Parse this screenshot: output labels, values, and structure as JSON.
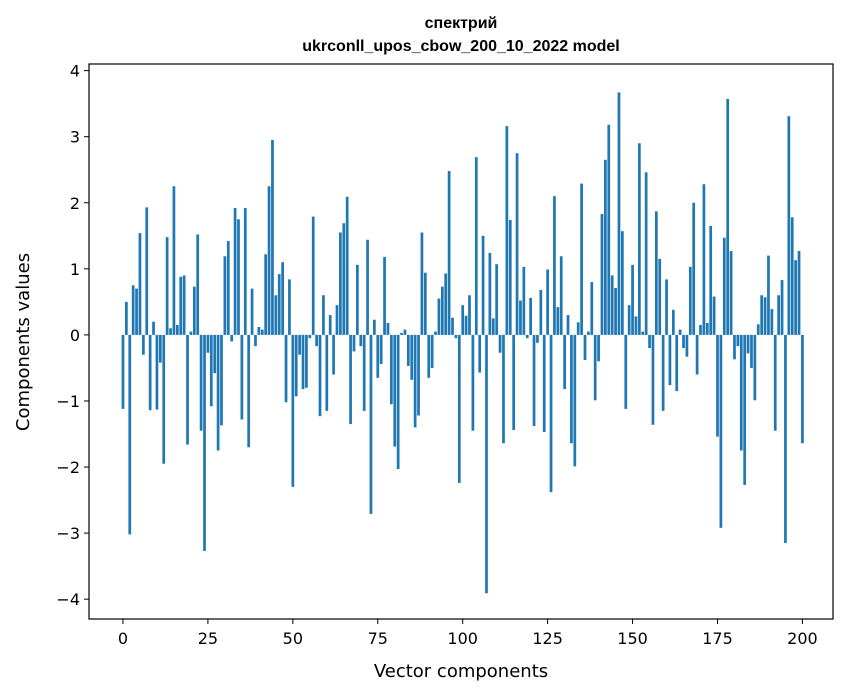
{
  "chart_data": {
    "type": "bar",
    "title_line1": "спектрий",
    "title_line2": "ukrconll_upos_cbow_200_10_2022 model",
    "xlabel": "Vector components",
    "ylabel": "Components values",
    "xlim": [
      -10,
      209
    ],
    "ylim": [
      -4.3,
      4.1
    ],
    "xticks": [
      0,
      25,
      50,
      75,
      100,
      125,
      150,
      175,
      200
    ],
    "yticks": [
      4,
      3,
      2,
      1,
      0,
      -1,
      -2,
      -3,
      -4
    ],
    "bar_color": "#1f77b4",
    "grid": false,
    "values": [
      -1.12,
      0.5,
      -3.02,
      0.75,
      0.7,
      1.54,
      -0.3,
      1.93,
      -1.14,
      0.2,
      -1.13,
      -0.42,
      -1.95,
      1.48,
      0.1,
      2.25,
      0.15,
      0.88,
      0.9,
      -1.66,
      0.05,
      0.73,
      1.52,
      -1.45,
      -3.27,
      -0.27,
      -1.08,
      -0.58,
      -1.75,
      -1.37,
      1.19,
      1.42,
      -0.1,
      1.92,
      1.75,
      -1.28,
      1.92,
      -1.7,
      0.7,
      -0.17,
      0.12,
      0.08,
      1.22,
      2.25,
      2.95,
      0.6,
      0.92,
      1.1,
      -1.02,
      0.84,
      -2.3,
      -0.93,
      -0.3,
      -0.82,
      -0.8,
      -0.05,
      1.79,
      -0.17,
      -1.23,
      0.6,
      -1.15,
      0.3,
      -0.6,
      0.45,
      1.55,
      1.69,
      2.09,
      -1.35,
      -0.25,
      1.06,
      -0.17,
      -1.15,
      1.44,
      -2.71,
      0.23,
      -0.65,
      -0.44,
      1.18,
      0.18,
      -1.05,
      -1.69,
      -2.03,
      0.03,
      0.08,
      -0.47,
      -0.68,
      -1.4,
      -1.22,
      1.55,
      0.94,
      -0.65,
      -0.5,
      0.05,
      0.55,
      0.73,
      0.93,
      2.48,
      0.26,
      -0.05,
      -2.24,
      0.45,
      0.29,
      0.6,
      -1.45,
      2.69,
      -0.57,
      1.5,
      -3.91,
      1.24,
      0.25,
      1.07,
      -0.27,
      -1.64,
      3.16,
      1.74,
      -1.44,
      2.75,
      0.52,
      1.03,
      -0.05,
      0.56,
      -1.38,
      -0.12,
      0.68,
      -1.47,
      0.99,
      -2.38,
      2.1,
      0.42,
      1.19,
      -0.82,
      0.3,
      -1.64,
      -1.99,
      0.19,
      2.29,
      -0.38,
      0.05,
      0.8,
      -0.99,
      -0.4,
      1.83,
      2.65,
      3.18,
      0.9,
      0.71,
      3.67,
      1.57,
      -1.12,
      0.45,
      1.06,
      0.28,
      2.9,
      0.05,
      2.46,
      -0.2,
      -1.36,
      1.87,
      1.15,
      -1.15,
      0.84,
      -0.76,
      0.38,
      -0.85,
      0.08,
      -0.2,
      -0.33,
      1.03,
      2.0,
      -0.6,
      0.15,
      2.28,
      0.18,
      1.65,
      0.58,
      -1.54,
      -2.92,
      1.47,
      3.57,
      1.27,
      -0.37,
      -0.17,
      -1.75,
      -2.27,
      -0.28,
      -0.5,
      -0.99,
      0.16,
      0.6,
      0.57,
      1.2,
      0.39,
      -1.45,
      0.6,
      0.83,
      -3.15,
      3.31,
      1.78,
      1.13,
      1.27,
      -1.64
    ]
  }
}
